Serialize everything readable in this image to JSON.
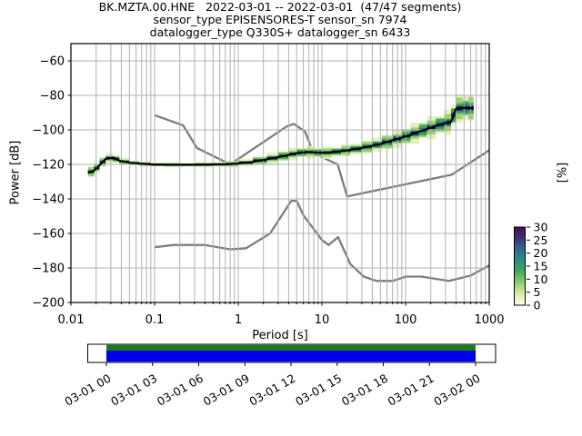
{
  "header": {
    "line1": "BK.MZTA.00.HNE   2022-03-01 -- 2022-03-01  (47/47 segments)",
    "line2": "sensor_type EPISENSORES-T sensor_sn 7974",
    "line3": "datalogger_type Q330S+ datalogger_sn 6433"
  },
  "chart_data": {
    "type": "heatmap",
    "title": "BK.MZTA.00.HNE   2022-03-01 -- 2022-03-01  (47/47 segments)",
    "subtitle1": "sensor_type EPISENSORES-T sensor_sn 7974",
    "subtitle2": "datalogger_type Q330S+ datalogger_sn 6433",
    "xlabel": "Period [s]",
    "ylabel": "Power [dB]",
    "right_axis_label": "[%]",
    "x_scale": "log",
    "xlim": [
      0.01,
      1000
    ],
    "ylim": [
      -200,
      -50
    ],
    "grid": true,
    "x_tick_values": [
      0.01,
      0.1,
      1,
      10,
      100,
      1000
    ],
    "x_ticks": [
      "0.01",
      "0.1",
      "1",
      "10",
      "100",
      "1000"
    ],
    "y_tick_values": [
      -60,
      -80,
      -100,
      -120,
      -140,
      -160,
      -180,
      -200
    ],
    "y_ticks": [
      "−60",
      "−80",
      "−100",
      "−120",
      "−140",
      "−160",
      "−180",
      "−200"
    ],
    "colors": {
      "grid": "#b0b0b0",
      "noise_model": "#7d7d7d",
      "mode_line": "#000000",
      "spine": "#000000"
    },
    "psd_mode_points_period_db_spread": [
      [
        0.016,
        -125,
        3
      ],
      [
        0.019,
        -123.5,
        3
      ],
      [
        0.022,
        -120.5,
        3
      ],
      [
        0.026,
        -116.8,
        2.6
      ],
      [
        0.032,
        -116,
        2.4
      ],
      [
        0.038,
        -117.8,
        2
      ],
      [
        0.05,
        -119,
        1.6
      ],
      [
        0.065,
        -119.5,
        1.3
      ],
      [
        0.09,
        -120,
        1.2
      ],
      [
        0.13,
        -120.2,
        1.2
      ],
      [
        0.2,
        -120.2,
        1.2
      ],
      [
        0.3,
        -120.2,
        1.2
      ],
      [
        0.5,
        -120,
        1.3
      ],
      [
        0.7,
        -120,
        1.5
      ],
      [
        1,
        -119.5,
        1.8
      ],
      [
        1.5,
        -118.5,
        2.2
      ],
      [
        2.2,
        -117,
        2.6
      ],
      [
        3,
        -115.8,
        3
      ],
      [
        4,
        -114.5,
        3
      ],
      [
        5,
        -113.5,
        3
      ],
      [
        6.5,
        -112.8,
        3
      ],
      [
        8,
        -113,
        3
      ],
      [
        10,
        -113.3,
        3
      ],
      [
        13,
        -113,
        3
      ],
      [
        17,
        -112.3,
        3
      ],
      [
        22,
        -111.6,
        3.2
      ],
      [
        30,
        -110.5,
        3.4
      ],
      [
        40,
        -109.2,
        3.6
      ],
      [
        52,
        -108,
        4
      ],
      [
        70,
        -106,
        4.4
      ],
      [
        90,
        -104.5,
        4.8
      ],
      [
        115,
        -102.8,
        5
      ],
      [
        145,
        -101,
        5.2
      ],
      [
        180,
        -99.5,
        5.4
      ],
      [
        230,
        -97.8,
        5.8
      ],
      [
        290,
        -96.2,
        6
      ],
      [
        350,
        -95.3,
        6.4
      ],
      [
        400,
        -87.8,
        7.4
      ],
      [
        480,
        -87.3,
        7.4
      ],
      [
        560,
        -87.3,
        7.4
      ],
      [
        650,
        -87.5,
        7
      ]
    ],
    "histogram_layers": [
      {
        "f": 1.0,
        "color": "#e3f2bd"
      },
      {
        "f": 0.72,
        "color": "#9fd36e"
      },
      {
        "f": 0.46,
        "color": "#3aa458"
      },
      {
        "f": 0.26,
        "color": "#20707f"
      },
      {
        "f": 0.13,
        "color": "#241245"
      }
    ],
    "noise_models": {
      "nlnm": [
        [
          0.1,
          -168
        ],
        [
          0.17,
          -166.7
        ],
        [
          0.4,
          -166.7
        ],
        [
          0.8,
          -169.2
        ],
        [
          1.24,
          -168.6
        ],
        [
          2.4,
          -160
        ],
        [
          4.3,
          -141.1
        ],
        [
          5,
          -141.1
        ],
        [
          6,
          -149.4
        ],
        [
          10,
          -163.8
        ],
        [
          12,
          -166.7
        ],
        [
          15.6,
          -162.1
        ],
        [
          21.9,
          -177.8
        ],
        [
          31.6,
          -185
        ],
        [
          45,
          -187.5
        ],
        [
          70,
          -187.5
        ],
        [
          101,
          -185
        ],
        [
          154,
          -185
        ],
        [
          328,
          -187.5
        ],
        [
          600,
          -184.4
        ],
        [
          1000,
          -178.5
        ]
      ],
      "nhnm": [
        [
          0.1,
          -91.5
        ],
        [
          0.22,
          -97.4
        ],
        [
          0.32,
          -110.5
        ],
        [
          0.8,
          -120
        ],
        [
          3.8,
          -98
        ],
        [
          4.6,
          -96.5
        ],
        [
          6.3,
          -101
        ],
        [
          7.9,
          -113.5
        ],
        [
          15.4,
          -120
        ],
        [
          20,
          -138.5
        ],
        [
          354.8,
          -126
        ],
        [
          1000,
          -111.8
        ]
      ]
    },
    "colorbar": {
      "label": "[%]",
      "tick_values": [
        0,
        5,
        10,
        15,
        20,
        25,
        30
      ],
      "ticks": [
        "0",
        "5",
        "10",
        "15",
        "20",
        "25",
        "30"
      ],
      "stops_top_to_bottom": [
        {
          "o": 0.0,
          "c": "#46104f"
        },
        {
          "o": 0.12,
          "c": "#3b2d6e"
        },
        {
          "o": 0.25,
          "c": "#345e8d"
        },
        {
          "o": 0.4,
          "c": "#2a8a8a"
        },
        {
          "o": 0.55,
          "c": "#3aa45f"
        },
        {
          "o": 0.7,
          "c": "#8cc96d"
        },
        {
          "o": 0.83,
          "c": "#cfe79e"
        },
        {
          "o": 0.93,
          "c": "#eef5cd"
        },
        {
          "o": 1.0,
          "c": "#fffef2"
        }
      ]
    },
    "coverage": {
      "labels": [
        "03-01 00",
        "03-01 03",
        "03-01 06",
        "03-01 09",
        "03-01 12",
        "03-01 15",
        "03-01 18",
        "03-01 21",
        "03-02 00"
      ],
      "bar_top_color": "#1c7c1c",
      "bar_bottom_color": "#0000ee",
      "outline_color": "#000000"
    }
  }
}
